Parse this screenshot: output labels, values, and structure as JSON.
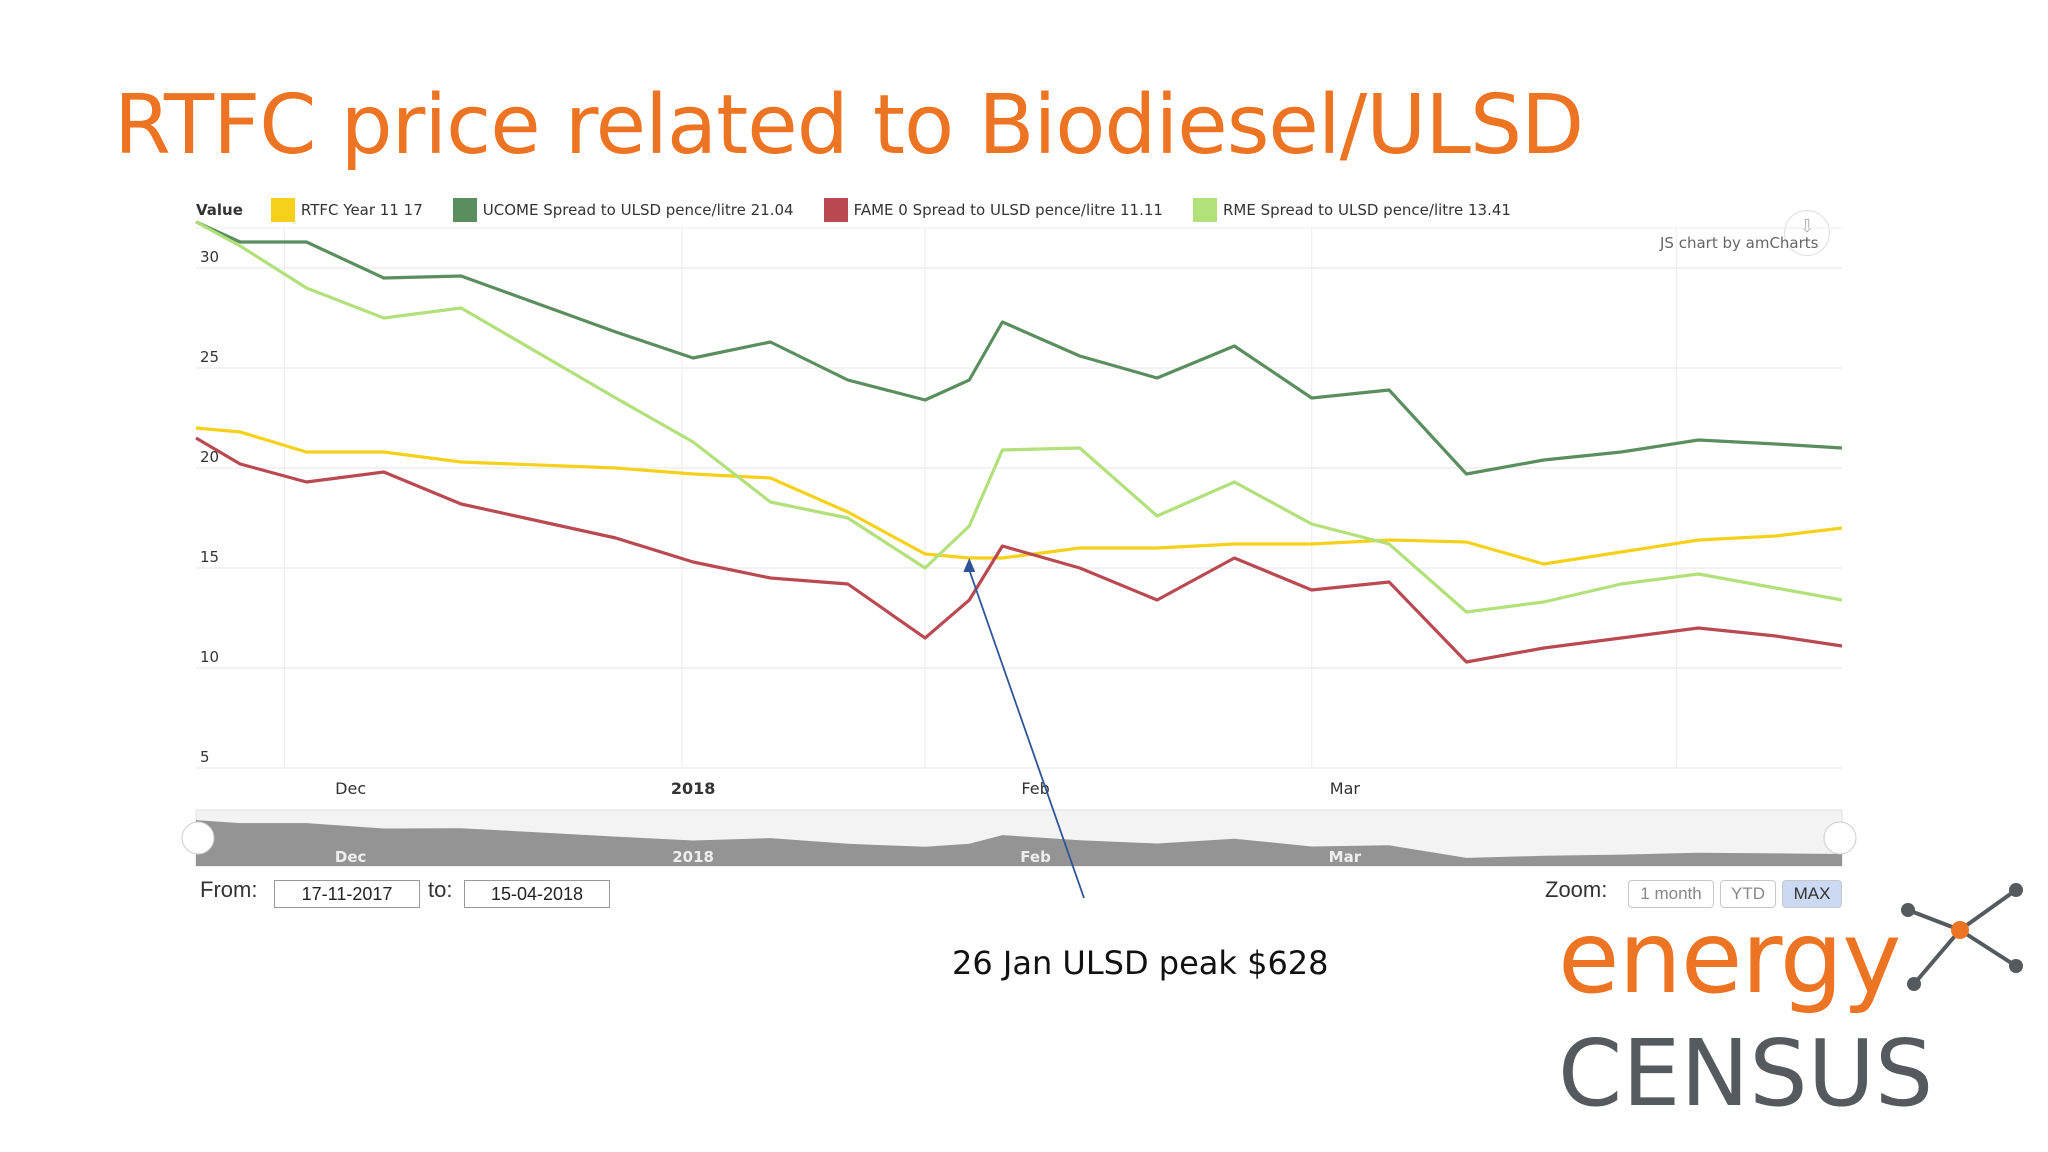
{
  "slide": {
    "title": "RTFC price related to Biodiesel/ULSD"
  },
  "legend": {
    "value_label": "Value",
    "items": [
      {
        "label": "RTFC Year 11 17",
        "color": "#F6D11C"
      },
      {
        "label": "UCOME Spread to ULSD pence/litre 21.04",
        "color": "#5B8E5F"
      },
      {
        "label": "FAME 0 Spread to ULSD pence/litre 11.11",
        "color": "#B94A52"
      },
      {
        "label": "RME Spread to ULSD pence/litre 13.41",
        "color": "#B2E07A"
      }
    ]
  },
  "credit": "JS chart by amCharts",
  "period": {
    "from_label": "From:",
    "from_value": "17-11-2017",
    "to_label": "to:",
    "to_value": "15-04-2018"
  },
  "zoom": {
    "label": "Zoom:",
    "buttons": [
      "1 month",
      "YTD",
      "MAX"
    ],
    "active": "MAX"
  },
  "annotation": "26 Jan ULSD peak $628",
  "logo": {
    "line1": "energy",
    "line2": "CENSUS"
  },
  "chart_data": {
    "type": "line",
    "title": "",
    "ylabel": "",
    "ylim": [
      5,
      32
    ],
    "yticks": [
      5,
      10,
      15,
      20,
      25,
      30
    ],
    "x_ticks": [
      {
        "label": "Dec",
        "date": "2017-12-01",
        "bold": false
      },
      {
        "label": "2018",
        "date": "2018-01-01",
        "bold": true
      },
      {
        "label": "Feb",
        "date": "2018-02-01",
        "bold": false
      },
      {
        "label": "Mar",
        "date": "2018-03-01",
        "bold": false
      }
    ],
    "x_range": [
      "2017-11-17",
      "2018-04-15"
    ],
    "x": [
      "2017-11-17",
      "2017-11-21",
      "2017-11-27",
      "2017-12-04",
      "2017-12-11",
      "2017-12-25",
      "2018-01-01",
      "2018-01-08",
      "2018-01-15",
      "2018-01-22",
      "2018-01-26",
      "2018-01-29",
      "2018-02-05",
      "2018-02-12",
      "2018-02-19",
      "2018-02-26",
      "2018-03-05",
      "2018-03-12",
      "2018-03-19",
      "2018-03-26",
      "2018-04-02",
      "2018-04-09",
      "2018-04-15"
    ],
    "series": [
      {
        "name": "RTFC Year 11",
        "color": "#F6D11C",
        "values": [
          22.0,
          21.8,
          20.8,
          20.8,
          20.3,
          20.0,
          19.7,
          19.5,
          17.8,
          15.7,
          15.5,
          15.5,
          16.0,
          16.0,
          16.2,
          16.2,
          16.4,
          16.3,
          15.2,
          15.8,
          16.4,
          16.6,
          17.0
        ]
      },
      {
        "name": "UCOME Spread to ULSD pence/litre",
        "color": "#5B8E5F",
        "values": [
          32.3,
          31.3,
          31.3,
          29.5,
          29.6,
          26.8,
          25.5,
          26.3,
          24.4,
          23.4,
          24.4,
          27.3,
          25.6,
          24.5,
          26.1,
          23.5,
          23.9,
          19.7,
          20.4,
          20.8,
          21.4,
          21.2,
          21.0
        ]
      },
      {
        "name": "FAME 0 Spread to ULSD pence/litre",
        "color": "#B94A52",
        "values": [
          21.5,
          20.2,
          19.3,
          19.8,
          18.2,
          16.5,
          15.3,
          14.5,
          14.2,
          11.5,
          13.4,
          16.1,
          15.0,
          13.4,
          15.5,
          13.9,
          14.3,
          10.3,
          11.0,
          11.5,
          12.0,
          11.6,
          11.1
        ]
      },
      {
        "name": "RME Spread to ULSD pence/litre",
        "color": "#B2E07A",
        "values": [
          32.3,
          31.1,
          29.0,
          27.5,
          28.0,
          23.5,
          21.3,
          18.3,
          17.5,
          15.0,
          17.1,
          20.9,
          21.0,
          17.6,
          19.3,
          17.2,
          16.2,
          12.8,
          13.3,
          14.2,
          14.7,
          14.0,
          13.4
        ]
      }
    ]
  }
}
